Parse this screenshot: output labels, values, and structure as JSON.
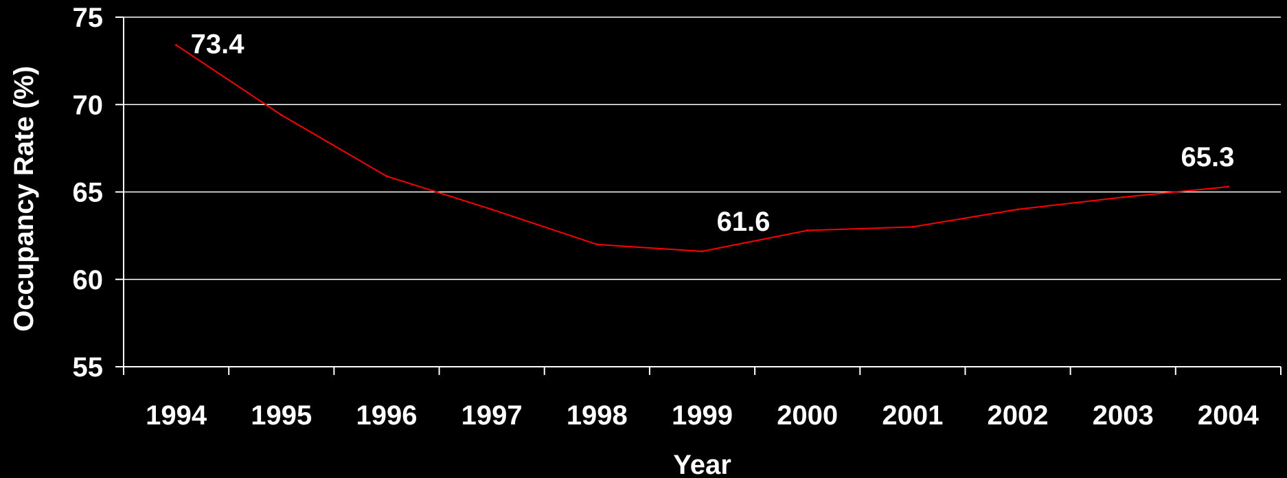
{
  "chart_data": {
    "type": "line",
    "title": "",
    "xlabel": "Year",
    "ylabel": "Occupancy Rate (%)",
    "categories": [
      "1994",
      "1995",
      "1996",
      "1997",
      "1998",
      "1999",
      "2000",
      "2001",
      "2002",
      "2003",
      "2004"
    ],
    "series": [
      {
        "name": "",
        "values": [
          73.4,
          69.4,
          65.9,
          64.0,
          62.0,
          61.6,
          62.8,
          63.0,
          64.0,
          64.7,
          65.3
        ],
        "color": "#ff0000"
      }
    ],
    "data_labels": [
      {
        "index": 0,
        "text": "73.4"
      },
      {
        "index": 5,
        "text": "61.6"
      },
      {
        "index": 10,
        "text": "65.3"
      }
    ],
    "ylim": [
      55,
      75
    ],
    "yticks": [
      "55",
      "60",
      "65",
      "70",
      "75"
    ],
    "grid": true,
    "legend": "none",
    "background": "#000000",
    "foreground": "#ffffff"
  }
}
